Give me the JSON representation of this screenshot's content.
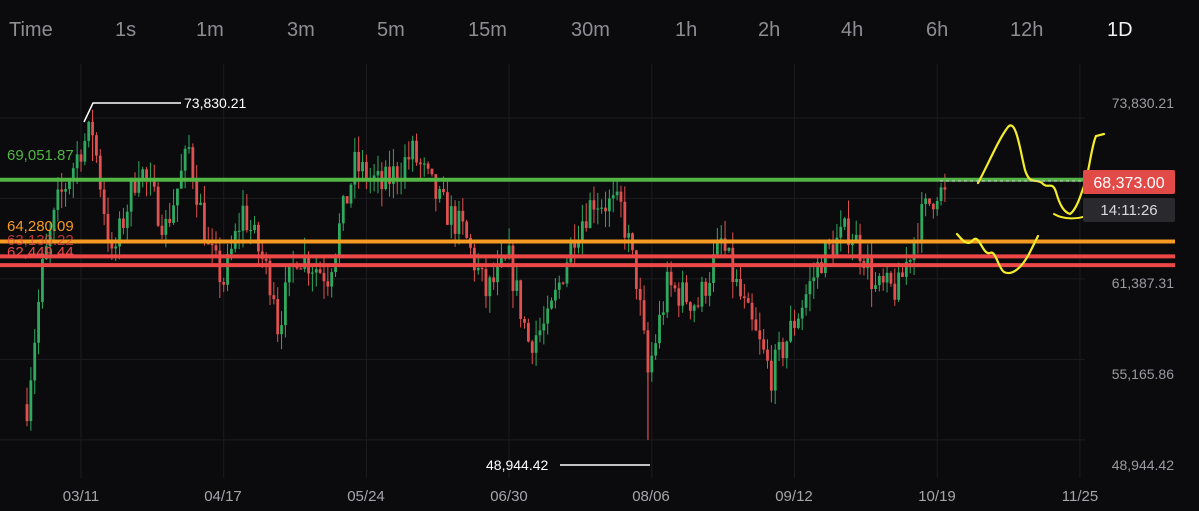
{
  "timeframes": [
    {
      "label": "Time",
      "active": false
    },
    {
      "label": "1s",
      "active": false
    },
    {
      "label": "1m",
      "active": false
    },
    {
      "label": "3m",
      "active": false
    },
    {
      "label": "5m",
      "active": false
    },
    {
      "label": "15m",
      "active": false
    },
    {
      "label": "30m",
      "active": false
    },
    {
      "label": "1h",
      "active": false
    },
    {
      "label": "2h",
      "active": false
    },
    {
      "label": "4h",
      "active": false
    },
    {
      "label": "6h",
      "active": false
    },
    {
      "label": "12h",
      "active": false
    },
    {
      "label": "1D",
      "active": true
    }
  ],
  "colors": {
    "up": "#2fa860",
    "down": "#e0504f",
    "green_level": "#52b545",
    "orange_level": "#f59a23",
    "red_level": "#ee4747",
    "drawing": "#f2ec2c",
    "price_tag": "#e24a48",
    "timer_tag": "#2a2a2e"
  },
  "chart_data": {
    "type": "candlestick",
    "ylim": [
      46000,
      78000
    ],
    "y_ticks": [
      "73,830.21",
      "61,387.31",
      "55,165.86",
      "48,944.42"
    ],
    "x_ticks": [
      "03/11",
      "04/17",
      "05/24",
      "06/30",
      "08/06",
      "09/12",
      "10/19",
      "11/25"
    ],
    "horizontal_levels": [
      {
        "value": 69051.87,
        "label": "69,051.87",
        "color": "green"
      },
      {
        "value": 64280.09,
        "label": "64,280.09",
        "color": "orange"
      },
      {
        "value": 63130.22,
        "label": "63,130.22",
        "color": "red"
      },
      {
        "value": 62449.44,
        "label": "62,449.44",
        "color": "red"
      }
    ],
    "annotations": [
      {
        "label": "73,830.21",
        "kind": "high",
        "date": "03/14"
      },
      {
        "label": "48,944.42",
        "kind": "low",
        "date": "08/05"
      }
    ],
    "current_price": "68,373.00",
    "countdown": "14:11:26",
    "price_path": [
      {
        "date": "02/26",
        "close": 51700
      },
      {
        "date": "03/01",
        "close": 62100
      },
      {
        "date": "03/05",
        "close": 67200
      },
      {
        "date": "03/11",
        "close": 71600
      },
      {
        "date": "03/14",
        "close": 72900
      },
      {
        "date": "03/19",
        "close": 62800
      },
      {
        "date": "03/26",
        "close": 70200
      },
      {
        "date": "04/02",
        "close": 65400
      },
      {
        "date": "04/08",
        "close": 71400
      },
      {
        "date": "04/13",
        "close": 63600
      },
      {
        "date": "04/17",
        "close": 61200
      },
      {
        "date": "04/22",
        "close": 66700
      },
      {
        "date": "04/30",
        "close": 60600
      },
      {
        "date": "05/01",
        "close": 57800
      },
      {
        "date": "05/06",
        "close": 63400
      },
      {
        "date": "05/14",
        "close": 61700
      },
      {
        "date": "05/21",
        "close": 70100
      },
      {
        "date": "05/28",
        "close": 68500
      },
      {
        "date": "06/05",
        "close": 71100
      },
      {
        "date": "06/12",
        "close": 67300
      },
      {
        "date": "06/18",
        "close": 65100
      },
      {
        "date": "06/24",
        "close": 60300
      },
      {
        "date": "06/30",
        "close": 62800
      },
      {
        "date": "07/05",
        "close": 56600
      },
      {
        "date": "07/10",
        "close": 57900
      },
      {
        "date": "07/17",
        "close": 65100
      },
      {
        "date": "07/22",
        "close": 67600
      },
      {
        "date": "07/29",
        "close": 66800
      },
      {
        "date": "08/02",
        "close": 61400
      },
      {
        "date": "08/05",
        "close": 54000
      },
      {
        "date": "08/10",
        "close": 60800
      },
      {
        "date": "08/18",
        "close": 59500
      },
      {
        "date": "08/24",
        "close": 64200
      },
      {
        "date": "08/30",
        "close": 59100
      },
      {
        "date": "09/06",
        "close": 54000
      },
      {
        "date": "09/12",
        "close": 58100
      },
      {
        "date": "09/19",
        "close": 63000
      },
      {
        "date": "09/26",
        "close": 65200
      },
      {
        "date": "09/30",
        "close": 63300
      },
      {
        "date": "10/03",
        "close": 60600
      },
      {
        "date": "10/09",
        "close": 60600
      },
      {
        "date": "10/14",
        "close": 65600
      },
      {
        "date": "10/19",
        "close": 68400
      },
      {
        "date": "10/22",
        "close": 67400
      }
    ]
  }
}
